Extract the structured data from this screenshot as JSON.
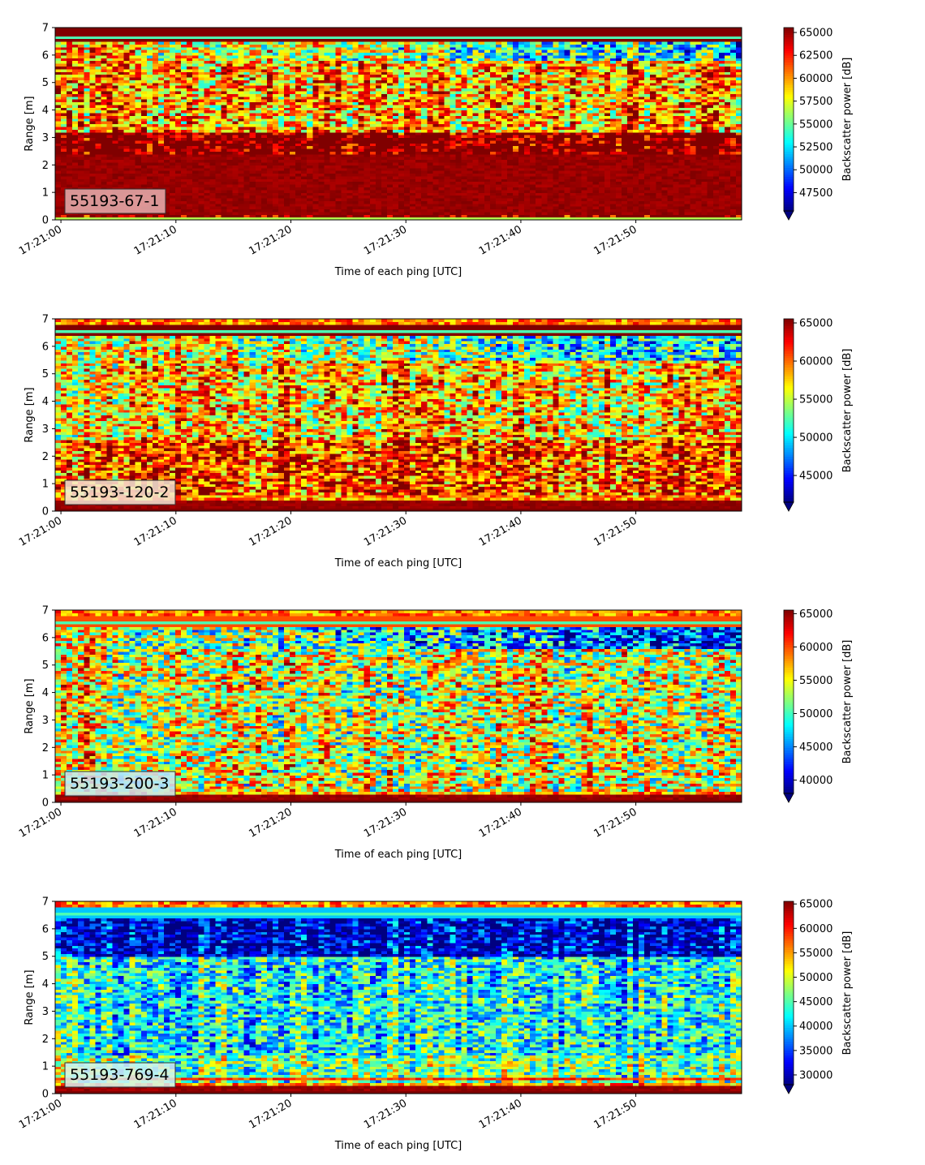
{
  "chart_data": [
    {
      "type": "heatmap",
      "label": "55193-67-1",
      "label_box_color": "#e6b0b0",
      "ylabel": "Range [m]",
      "xlabel": "Time of each ping [UTC]",
      "xticks": [
        "17:21:00",
        "17:21:10",
        "17:21:20",
        "17:21:30",
        "17:21:40",
        "17:21:50"
      ],
      "xlim_seconds": [
        -0.5,
        59.2
      ],
      "yticks": [
        "0",
        "1",
        "2",
        "3",
        "4",
        "5",
        "6",
        "7"
      ],
      "ylim": [
        0,
        7
      ],
      "colorbar": {
        "label": "Backscatter power [dB]",
        "ticks": [
          "47500",
          "50000",
          "52500",
          "55000",
          "57500",
          "60000",
          "62500",
          "65000"
        ],
        "range": [
          45500,
          65535
        ],
        "extend": "min",
        "colormap": "jet"
      },
      "field": {
        "style": "high",
        "top_band": 65535,
        "lower_red_from": 0.2,
        "lower_red_to": 2.4,
        "upper_red_to": 6.5
      }
    },
    {
      "type": "heatmap",
      "label": "55193-120-2",
      "label_box_color": "#f5e9d6",
      "ylabel": "Range [m]",
      "xlabel": "Time of each ping [UTC]",
      "xticks": [
        "17:21:00",
        "17:21:10",
        "17:21:20",
        "17:21:30",
        "17:21:40",
        "17:21:50"
      ],
      "xlim_seconds": [
        -0.5,
        59.2
      ],
      "yticks": [
        "0",
        "1",
        "2",
        "3",
        "4",
        "5",
        "6",
        "7"
      ],
      "ylim": [
        0,
        7
      ],
      "colorbar": {
        "label": "Backscatter power [dB]",
        "ticks": [
          "45000",
          "50000",
          "55000",
          "60000",
          "65000"
        ],
        "range": [
          41500,
          65535
        ],
        "extend": "min",
        "colormap": "jet"
      },
      "field": {
        "style": "mid",
        "top_band": 65535,
        "lower_red_from": 0.1,
        "lower_red_to": 0.6,
        "upper_red_to": 6.4
      }
    },
    {
      "type": "heatmap",
      "label": "55193-200-3",
      "label_box_color": "#c8e6f4",
      "ylabel": "Range [m]",
      "xlabel": "Time of each ping [UTC]",
      "xticks": [
        "17:21:00",
        "17:21:10",
        "17:21:20",
        "17:21:30",
        "17:21:40",
        "17:21:50"
      ],
      "xlim_seconds": [
        -0.5,
        59.2
      ],
      "yticks": [
        "0",
        "1",
        "2",
        "3",
        "4",
        "5",
        "6",
        "7"
      ],
      "ylim": [
        0,
        7
      ],
      "colorbar": {
        "label": "Backscatter power [dB]",
        "ticks": [
          "40000",
          "45000",
          "50000",
          "55000",
          "60000",
          "65000"
        ],
        "range": [
          38000,
          65535
        ],
        "extend": "min",
        "colormap": "jet"
      },
      "field": {
        "style": "mixed",
        "top_band": 60000,
        "lower_red_from": 0.1,
        "lower_red_to": 0.4,
        "upper_red_to": 6.4
      }
    },
    {
      "type": "heatmap",
      "label": "55193-769-4",
      "label_box_color": "#d6f2ee",
      "ylabel": "Range [m]",
      "xlabel": "Time of each ping [UTC]",
      "xticks": [
        "17:21:00",
        "17:21:10",
        "17:21:20",
        "17:21:30",
        "17:21:40",
        "17:21:50"
      ],
      "xlim_seconds": [
        -0.5,
        59.2
      ],
      "yticks": [
        "0",
        "1",
        "2",
        "3",
        "4",
        "5",
        "6",
        "7"
      ],
      "ylim": [
        0,
        7
      ],
      "colorbar": {
        "label": "Backscatter power [dB]",
        "ticks": [
          "30000",
          "35000",
          "40000",
          "45000",
          "50000",
          "55000",
          "60000",
          "65000"
        ],
        "range": [
          28000,
          65535
        ],
        "extend": "min",
        "colormap": "jet"
      },
      "field": {
        "style": "low",
        "top_band": 40000,
        "lower_red_from": 0.1,
        "lower_red_to": 0.4,
        "upper_red_to": 6.4
      }
    }
  ]
}
